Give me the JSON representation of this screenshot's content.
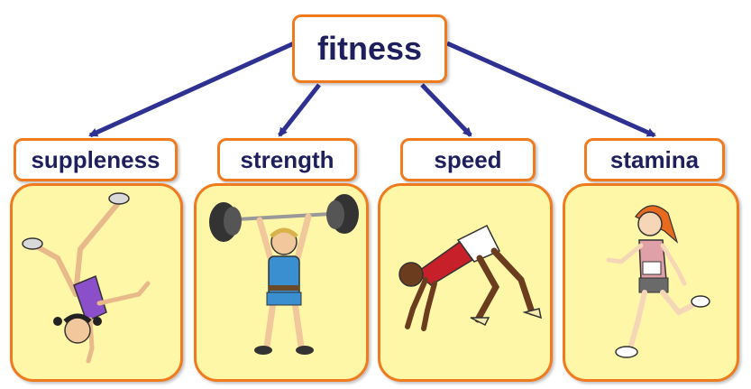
{
  "root": {
    "label": "fitness"
  },
  "children": [
    {
      "label": "suppleness",
      "figure_icon": "cartwheel-girl-icon"
    },
    {
      "label": "strength",
      "figure_icon": "weightlifter-icon"
    },
    {
      "label": "speed",
      "figure_icon": "sprinter-start-icon"
    },
    {
      "label": "stamina",
      "figure_icon": "runner-woman-icon"
    }
  ],
  "colors": {
    "box_border": "#f07a1e",
    "panel_fill": "#fff7a8",
    "text": "#1f1f5e",
    "arrow": "#2e3192"
  }
}
